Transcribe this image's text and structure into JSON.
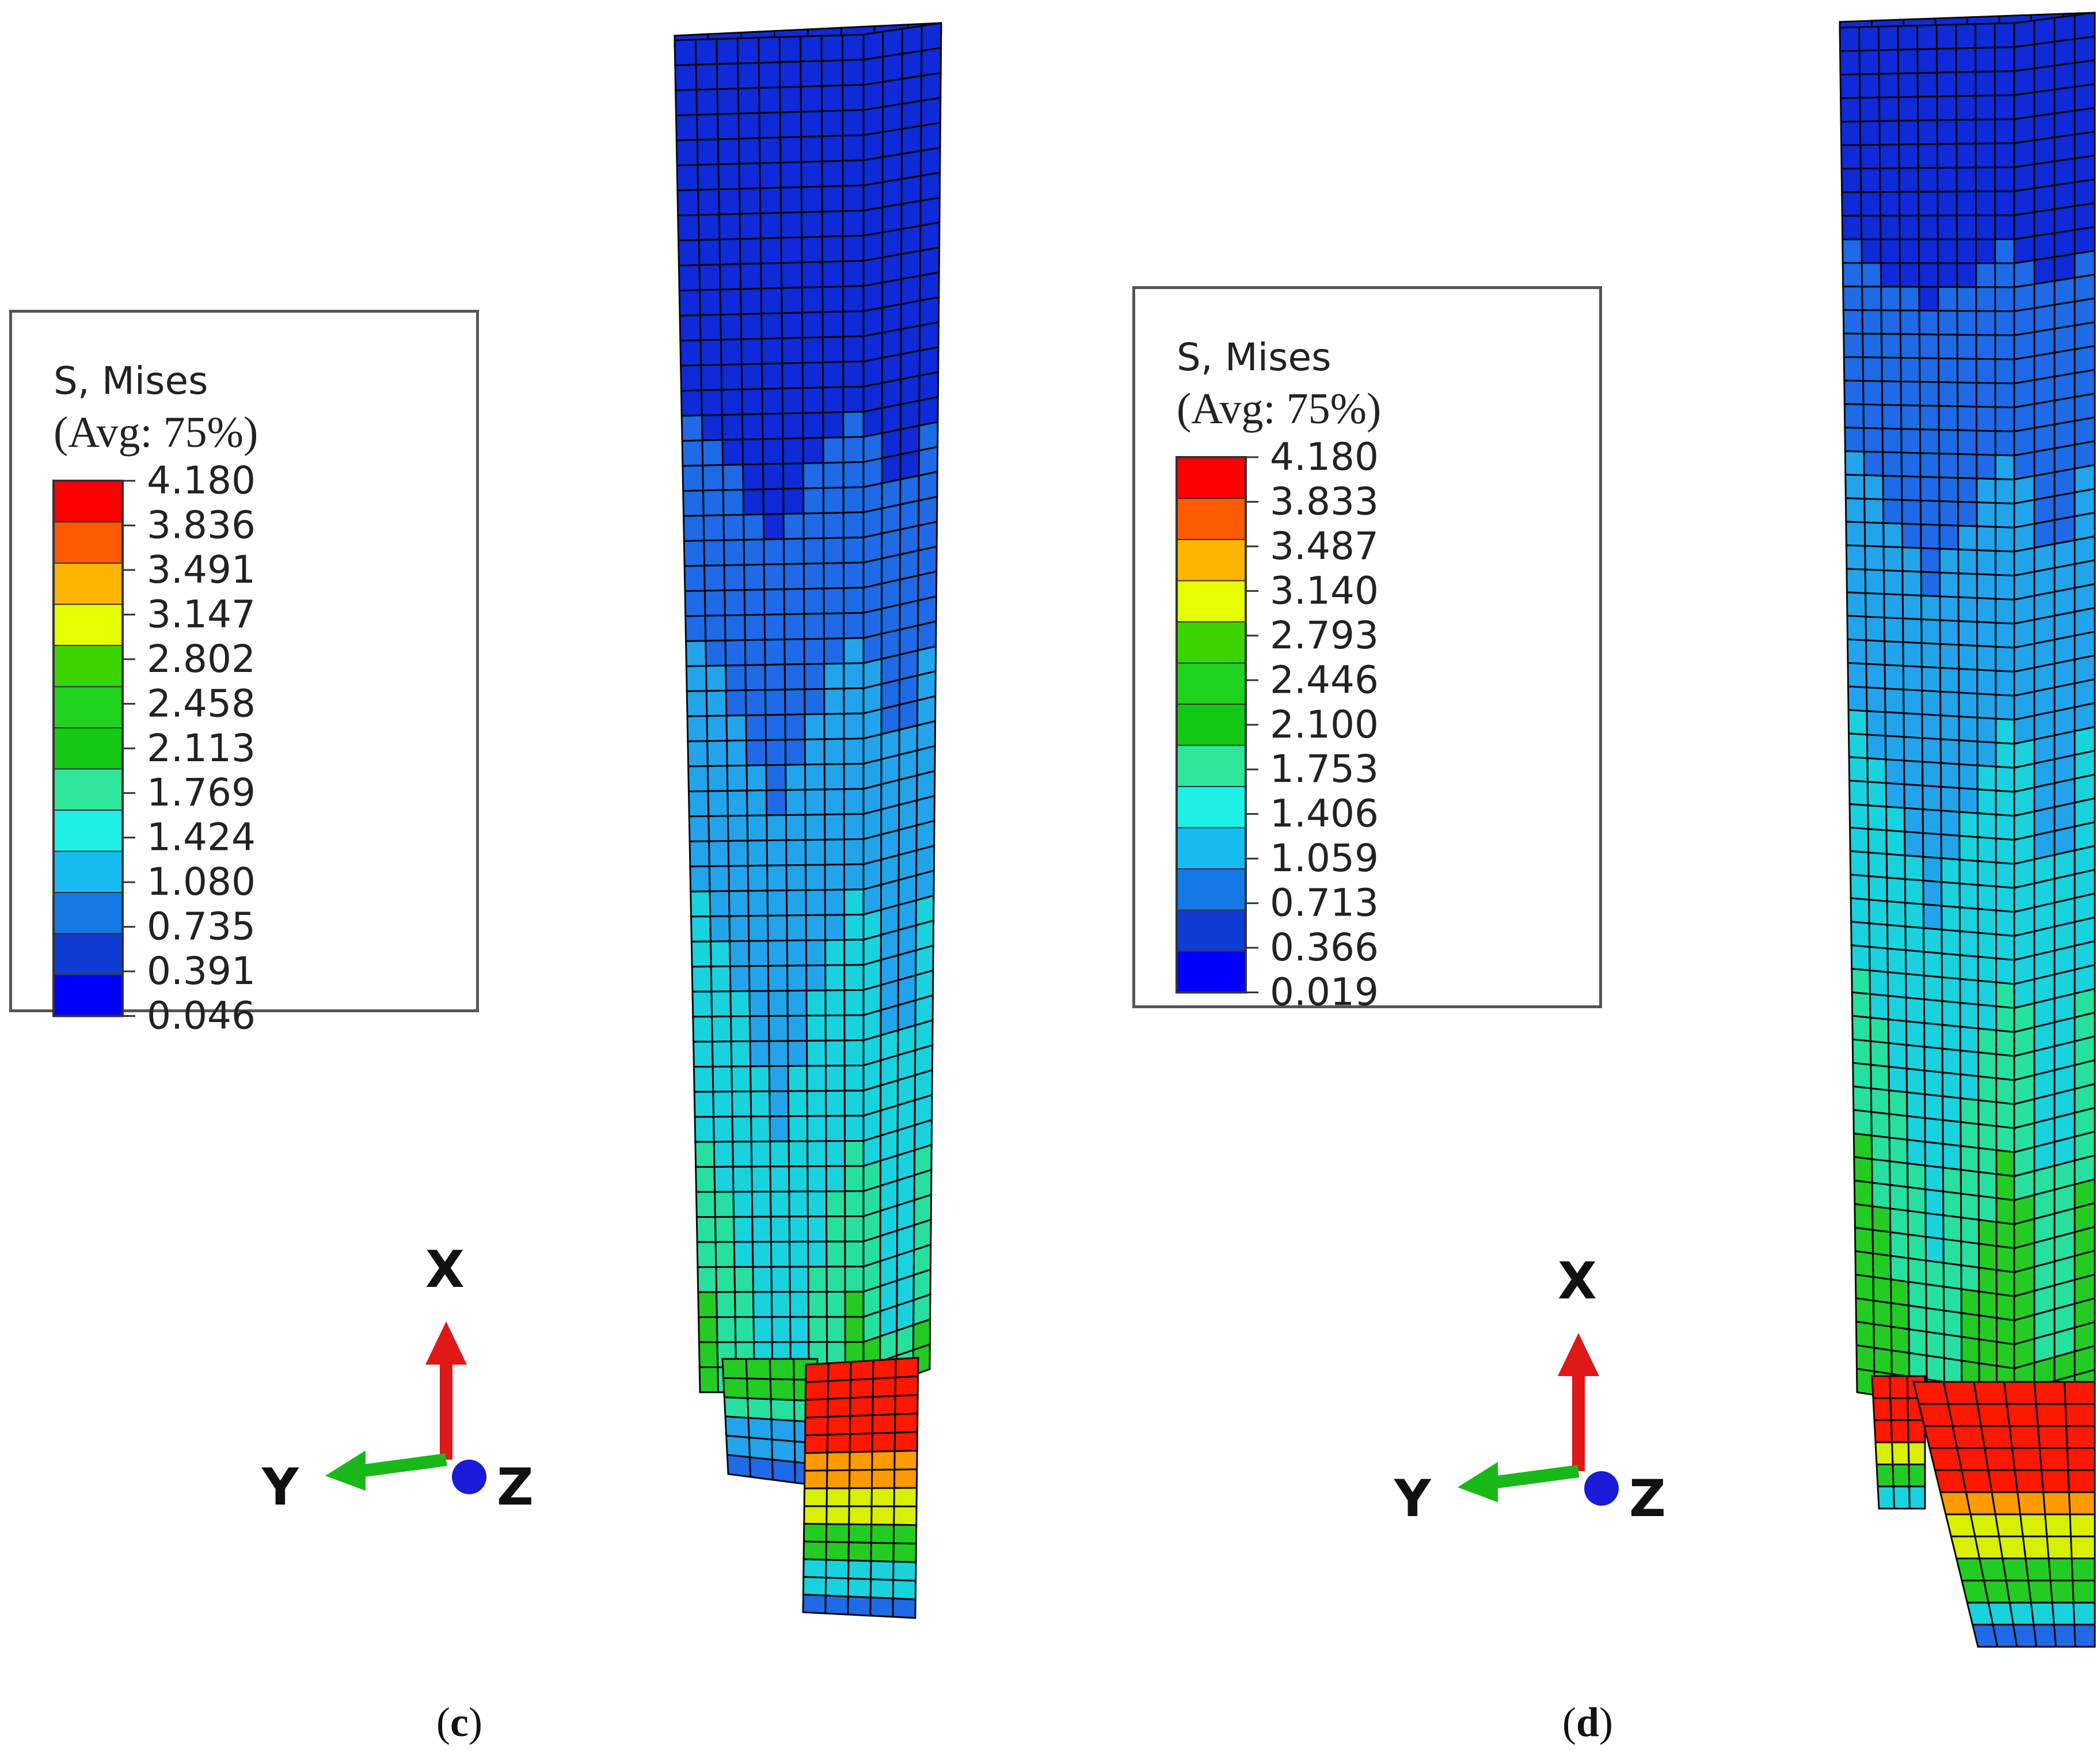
{
  "panels": [
    {
      "id": "c",
      "caption_letter": "c",
      "legend": {
        "title": "S, Mises",
        "avg": "(Avg: 75%)",
        "values": [
          "4.180",
          "3.836",
          "3.491",
          "3.147",
          "2.802",
          "2.458",
          "2.113",
          "1.769",
          "1.424",
          "1.080",
          "0.735",
          "0.391",
          "0.046"
        ]
      },
      "axes": {
        "x_label": "X",
        "y_label": "Y",
        "z_label": "Z"
      }
    },
    {
      "id": "d",
      "caption_letter": "d",
      "legend": {
        "title": "S, Mises",
        "avg": "(Avg: 75%)",
        "values": [
          "4.180",
          "3.833",
          "3.487",
          "3.140",
          "2.793",
          "2.446",
          "2.100",
          "1.753",
          "1.406",
          "1.059",
          "0.713",
          "0.366",
          "0.019"
        ]
      },
      "axes": {
        "x_label": "X",
        "y_label": "Y",
        "z_label": "Z"
      }
    }
  ],
  "colormap": [
    "#ff0000",
    "#ff5a00",
    "#ffb400",
    "#e5ff00",
    "#3cd400",
    "#1ed21e",
    "#14c814",
    "#2ee69a",
    "#1ef0e6",
    "#16bcf0",
    "#1478e6",
    "#0f3cd2",
    "#0000ff"
  ],
  "mesh_colors": {
    "deep_blue": "#0f2ad8",
    "mid_blue": "#1f6ae6",
    "light_blue": "#22a4ec",
    "cyan": "#18d2de",
    "teal": "#26e0a0",
    "green": "#22cc22",
    "yellow": "#d8f000",
    "orange": "#ff9a00",
    "red": "#ff1800",
    "grid": "#0a0a0a"
  },
  "arrow_colors": {
    "x": "#e01818",
    "y": "#18b818",
    "z": "#1a1ad8"
  }
}
